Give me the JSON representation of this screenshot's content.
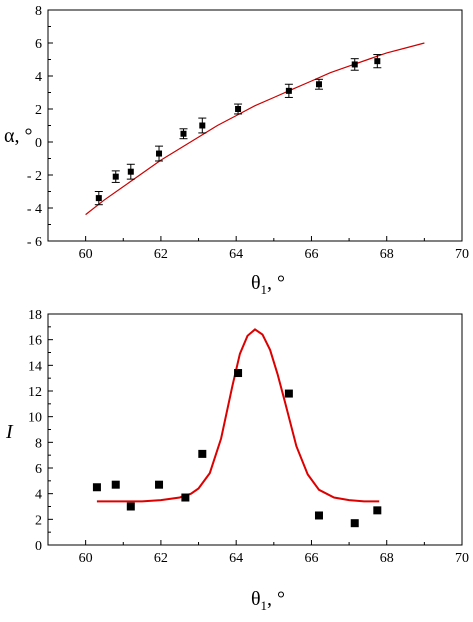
{
  "chart_data": [
    {
      "type": "scatter",
      "title": "",
      "xlabel": "θ1, °",
      "xlabel_main": "θ",
      "xlabel_sub": "1",
      "xlabel_suffix": ", °",
      "ylabel": "α, °",
      "xlim": [
        59,
        70
      ],
      "ylim": [
        -6,
        8
      ],
      "xticks": [
        60,
        62,
        64,
        66,
        68,
        70
      ],
      "yticks": [
        -6,
        -4,
        -2,
        0,
        2,
        4,
        6,
        8
      ],
      "xtick_labels": [
        "60",
        "62",
        "64",
        "66",
        "68",
        "70"
      ],
      "ytick_labels": [
        "- 6",
        "- 4",
        "- 2",
        "0",
        "2",
        "4",
        "6",
        "8"
      ],
      "grid": false,
      "colors": {
        "points": "#000000",
        "fit": "#cc0000"
      },
      "series": [
        {
          "kind": "points-with-error-bars",
          "x": [
            60.35,
            60.8,
            61.2,
            61.95,
            62.6,
            63.1,
            64.05,
            65.4,
            66.2,
            67.15,
            67.75
          ],
          "y": [
            -3.4,
            -2.1,
            -1.8,
            -0.7,
            0.5,
            1.0,
            2.0,
            3.1,
            3.5,
            4.7,
            4.9
          ],
          "yerr": [
            0.4,
            0.35,
            0.45,
            0.45,
            0.3,
            0.45,
            0.3,
            0.4,
            0.3,
            0.35,
            0.4
          ]
        },
        {
          "kind": "fit-line",
          "x": [
            60.0,
            60.5,
            61.0,
            61.5,
            62.0,
            62.5,
            63.0,
            63.5,
            64.0,
            64.5,
            65.0,
            65.5,
            66.0,
            66.5,
            67.0,
            67.5,
            68.0,
            68.5,
            69.0
          ],
          "y": [
            -4.4,
            -3.5,
            -2.7,
            -1.9,
            -1.1,
            -0.4,
            0.3,
            1.0,
            1.6,
            2.2,
            2.7,
            3.2,
            3.7,
            4.2,
            4.6,
            5.0,
            5.4,
            5.7,
            6.0
          ]
        }
      ]
    },
    {
      "type": "scatter",
      "title": "",
      "xlabel": "θ1, °",
      "xlabel_main": "θ",
      "xlabel_sub": "1",
      "xlabel_suffix": ", °",
      "ylabel": "I",
      "xlim": [
        59,
        70
      ],
      "ylim": [
        0,
        18
      ],
      "xticks": [
        60,
        62,
        64,
        66,
        68,
        70
      ],
      "yticks": [
        0,
        2,
        4,
        6,
        8,
        10,
        12,
        14,
        16,
        18
      ],
      "xtick_labels": [
        "60",
        "62",
        "64",
        "66",
        "68",
        "70"
      ],
      "ytick_labels": [
        "0",
        "2",
        "4",
        "6",
        "8",
        "10",
        "12",
        "14",
        "16",
        "18"
      ],
      "grid": false,
      "colors": {
        "points": "#000000",
        "fit": "#dd0000"
      },
      "series": [
        {
          "kind": "points",
          "x": [
            60.3,
            60.8,
            61.2,
            61.95,
            62.65,
            63.1,
            64.05,
            65.4,
            66.2,
            67.15,
            67.75
          ],
          "y": [
            4.5,
            4.7,
            3.0,
            4.7,
            3.7,
            7.1,
            13.4,
            11.8,
            2.3,
            1.7,
            2.7
          ]
        },
        {
          "kind": "fit-line",
          "x": [
            60.3,
            61.0,
            61.5,
            62.0,
            62.5,
            62.8,
            63.0,
            63.3,
            63.6,
            63.9,
            64.1,
            64.3,
            64.5,
            64.7,
            64.9,
            65.1,
            65.3,
            65.6,
            65.9,
            66.2,
            66.6,
            67.0,
            67.4,
            67.8
          ],
          "y": [
            3.4,
            3.4,
            3.4,
            3.5,
            3.7,
            4.0,
            4.4,
            5.6,
            8.3,
            12.4,
            14.9,
            16.3,
            16.8,
            16.4,
            15.2,
            13.3,
            11.1,
            7.7,
            5.5,
            4.3,
            3.7,
            3.5,
            3.4,
            3.4
          ]
        }
      ]
    }
  ]
}
